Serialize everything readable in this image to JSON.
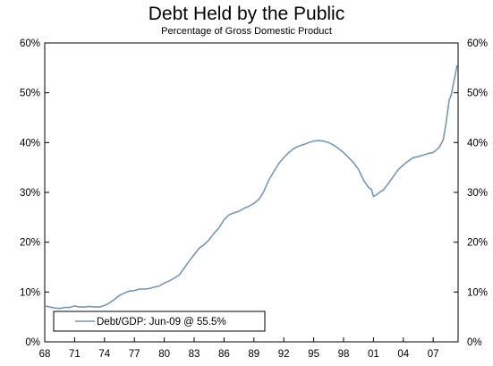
{
  "chart_data": {
    "type": "line",
    "title": "Debt Held by the Public",
    "subtitle": "Percentage of Gross Domestic Product",
    "xlabel": "",
    "ylabel": "",
    "x_tick_labels": [
      "68",
      "71",
      "74",
      "77",
      "80",
      "83",
      "86",
      "89",
      "92",
      "95",
      "98",
      "01",
      "04",
      "07"
    ],
    "y_tick_labels": [
      "0%",
      "10%",
      "20%",
      "30%",
      "40%",
      "50%",
      "60%"
    ],
    "ylim": [
      0,
      60
    ],
    "xlim": [
      1968,
      2009.5
    ],
    "grid": false,
    "legend": {
      "placement": "bottom-left",
      "entries": [
        "Debt/GDP:  Jun-09 @ 55.5%"
      ]
    },
    "colors": {
      "series": "#7799b0",
      "axis": "#000000"
    },
    "series": [
      {
        "legend": "Debt/GDP:  Jun-09 @ 55.5%",
        "x": [
          1968.0,
          1968.5,
          1969.0,
          1969.5,
          1970.0,
          1970.5,
          1971.0,
          1971.5,
          1972.0,
          1972.5,
          1973.0,
          1973.5,
          1974.0,
          1974.5,
          1975.0,
          1975.5,
          1976.0,
          1976.5,
          1977.0,
          1977.5,
          1978.0,
          1978.5,
          1979.0,
          1979.5,
          1980.0,
          1980.5,
          1981.0,
          1981.5,
          1982.0,
          1982.5,
          1983.0,
          1983.5,
          1984.0,
          1984.5,
          1985.0,
          1985.5,
          1986.0,
          1986.5,
          1987.0,
          1987.5,
          1988.0,
          1988.5,
          1989.0,
          1989.5,
          1990.0,
          1990.5,
          1991.0,
          1991.5,
          1992.0,
          1992.5,
          1993.0,
          1993.5,
          1994.0,
          1994.5,
          1995.0,
          1995.5,
          1996.0,
          1996.5,
          1997.0,
          1997.5,
          1998.0,
          1998.5,
          1999.0,
          1999.5,
          2000.0,
          2000.5,
          2000.8,
          2001.0,
          2001.3,
          2001.6,
          2002.0,
          2002.5,
          2003.0,
          2003.5,
          2004.0,
          2004.5,
          2005.0,
          2005.5,
          2006.0,
          2006.5,
          2007.0,
          2007.3,
          2007.6,
          2008.0,
          2008.3,
          2008.6,
          2008.8,
          2009.0,
          2009.2,
          2009.4
        ],
        "values": [
          7.2,
          7.0,
          6.8,
          6.7,
          6.9,
          6.9,
          7.2,
          7.0,
          7.0,
          7.1,
          7.0,
          7.0,
          7.3,
          7.8,
          8.5,
          9.3,
          9.8,
          10.2,
          10.3,
          10.6,
          10.6,
          10.7,
          11.0,
          11.2,
          11.8,
          12.2,
          12.8,
          13.4,
          14.8,
          16.2,
          17.5,
          18.8,
          19.5,
          20.5,
          21.8,
          22.9,
          24.5,
          25.5,
          25.9,
          26.2,
          26.8,
          27.2,
          27.8,
          28.6,
          30.2,
          32.5,
          34.2,
          35.8,
          37.0,
          38.0,
          38.8,
          39.3,
          39.6,
          40.0,
          40.3,
          40.4,
          40.3,
          40.0,
          39.5,
          38.8,
          38.0,
          37.0,
          36.0,
          34.6,
          32.5,
          31.0,
          30.6,
          29.2,
          29.5,
          30.0,
          30.5,
          31.8,
          33.2,
          34.6,
          35.5,
          36.3,
          37.0,
          37.2,
          37.5,
          37.8,
          38.0,
          38.5,
          39.0,
          40.5,
          44.0,
          48.5,
          49.5,
          51.5,
          53.5,
          55.5
        ]
      }
    ]
  }
}
